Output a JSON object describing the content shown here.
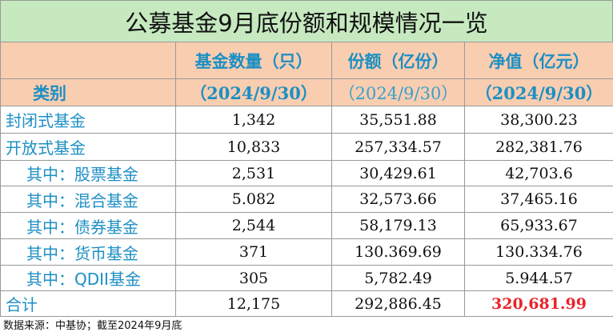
{
  "title": "公募基金9月底份额和规模情况一览",
  "table": {
    "corner": "类别",
    "columns": [
      {
        "name": "基金数量（只）",
        "date": "（2024/9/30）"
      },
      {
        "name": "份额（亿份）",
        "date": "（2024/9/30）"
      },
      {
        "name": "净值（亿元）",
        "date": "（2024/9/30）"
      }
    ],
    "rows": [
      [
        "封闭式基金",
        "1,342",
        "35,551.88",
        "38,300.23"
      ],
      [
        "开放式基金",
        "10,833",
        "257,334.57",
        "282,381.76"
      ],
      [
        "其中：股票基金",
        "2,531",
        "30,429.61",
        "42,703.6"
      ],
      [
        "其中：混合基金",
        "5.082",
        "32,573.66",
        "37,465.16"
      ],
      [
        "其中：债券基金",
        "2,544",
        "58,179.13",
        "65,933.67"
      ],
      [
        "其中：货币基金",
        "371",
        "130.369.69",
        "130.334.76"
      ],
      [
        "其中：QDII基金",
        "305",
        "5,782.49",
        "5.944.57"
      ],
      [
        "合计",
        "12,175",
        "292,886.45",
        "320,681.99"
      ]
    ]
  },
  "footer": "数据来源：中基协；截至2024年9月底"
}
